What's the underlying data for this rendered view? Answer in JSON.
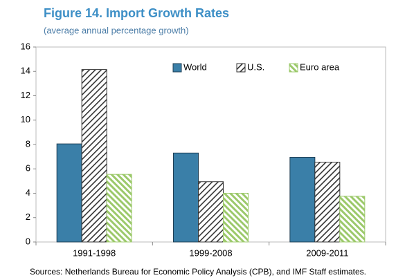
{
  "chart_data": {
    "type": "bar",
    "title": "Figure 14. Import Growth Rates",
    "subtitle": "(average annual percentage growth)",
    "source": "Sources: Netherlands Bureau for Economic Policy Analysis (CPB), and IMF Staff estimates.",
    "categories": [
      "1991-1998",
      "1999-2008",
      "2009-2011"
    ],
    "series": [
      {
        "name": "World",
        "color": "#3a7fa8",
        "pattern": "solid",
        "values": [
          8.05,
          7.3,
          6.95
        ]
      },
      {
        "name": "U.S.",
        "color": "#333333",
        "pattern": "hatch",
        "values": [
          14.15,
          4.95,
          6.55
        ]
      },
      {
        "name": "Euro area",
        "color": "#9cc96b",
        "pattern": "stripes",
        "values": [
          5.55,
          4.0,
          3.75
        ]
      }
    ],
    "ylim": [
      0,
      16
    ],
    "yticks": [
      0,
      2,
      4,
      6,
      8,
      10,
      12,
      14,
      16
    ],
    "grid": false,
    "legend": "top-right"
  }
}
